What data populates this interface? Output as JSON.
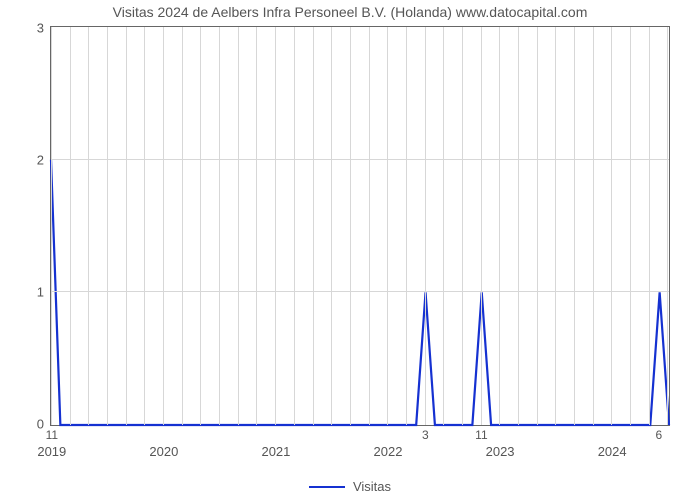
{
  "chart": {
    "type": "line",
    "title": "Visitas 2024 de Aelbers Infra Personeel B.V. (Holanda) www.datocapital.com",
    "title_fontsize": 14,
    "title_color": "#555555",
    "background_color": "#ffffff",
    "plot_border_color": "#666666",
    "plot_border_width": 1.8,
    "grid_color": "#d7d7d7",
    "grid_width": 1,
    "x_domain": [
      0,
      66
    ],
    "y_domain": [
      0,
      3
    ],
    "y_ticks": [
      0,
      1,
      2,
      3
    ],
    "y_tick_fontsize": 13,
    "y_tick_color": "#555555",
    "x_major_ticks": [
      {
        "x": 0,
        "label": "2019"
      },
      {
        "x": 12,
        "label": "2020"
      },
      {
        "x": 24,
        "label": "2021"
      },
      {
        "x": 36,
        "label": "2022"
      },
      {
        "x": 48,
        "label": "2023"
      },
      {
        "x": 60,
        "label": "2024"
      }
    ],
    "x_major_fontsize": 13,
    "x_minor_visible_ticks": [
      {
        "x": 0,
        "label": "11"
      },
      {
        "x": 40,
        "label": "3"
      },
      {
        "x": 46,
        "label": "11"
      },
      {
        "x": 65,
        "label": "6"
      }
    ],
    "x_minor_fontsize": 12,
    "x_grid_step": 2,
    "series": {
      "label": "Visitas",
      "color": "#1531d1",
      "line_width": 2.2,
      "points": [
        {
          "x": 0,
          "y": 2
        },
        {
          "x": 1,
          "y": 0
        },
        {
          "x": 39,
          "y": 0
        },
        {
          "x": 40,
          "y": 1
        },
        {
          "x": 41,
          "y": 0
        },
        {
          "x": 45,
          "y": 0
        },
        {
          "x": 46,
          "y": 1
        },
        {
          "x": 47,
          "y": 0
        },
        {
          "x": 64,
          "y": 0
        },
        {
          "x": 65,
          "y": 1
        },
        {
          "x": 66,
          "y": 0
        }
      ]
    },
    "legend": {
      "position": "bottom-center",
      "fontsize": 13
    }
  }
}
